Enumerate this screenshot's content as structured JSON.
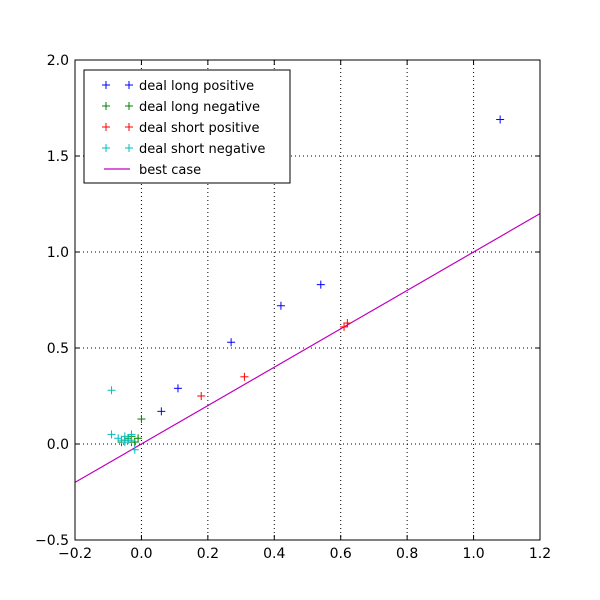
{
  "chart_data": {
    "type": "scatter",
    "title": "",
    "xlabel": "",
    "ylabel": "",
    "xlim": [
      -0.2,
      1.2
    ],
    "ylim": [
      -0.5,
      2.0
    ],
    "xticks": [
      -0.2,
      0.0,
      0.2,
      0.4,
      0.6,
      0.8,
      1.0,
      1.2
    ],
    "yticks": [
      -0.5,
      0.0,
      0.5,
      1.0,
      1.5,
      2.0
    ],
    "xtick_labels": [
      "−0.2",
      "0.0",
      "0.2",
      "0.4",
      "0.6",
      "0.8",
      "1.0",
      "1.2"
    ],
    "ytick_labels": [
      "−0.5",
      "0.0",
      "0.5",
      "1.0",
      "1.5",
      "2.0"
    ],
    "grid": true,
    "legend_position": "top-left",
    "series": [
      {
        "name": "deal long positive",
        "marker": "+",
        "color": "#0000ff",
        "points": [
          [
            0.06,
            0.17
          ],
          [
            0.11,
            0.29
          ],
          [
            0.27,
            0.53
          ],
          [
            0.42,
            0.72
          ],
          [
            0.54,
            0.83
          ],
          [
            1.08,
            1.69
          ]
        ]
      },
      {
        "name": "deal long negative",
        "marker": "+",
        "color": "#008000",
        "points": [
          [
            -0.05,
            0.02
          ],
          [
            -0.04,
            0.03
          ],
          [
            -0.03,
            0.04
          ],
          [
            -0.02,
            0.01
          ],
          [
            -0.01,
            0.03
          ],
          [
            0.0,
            0.13
          ],
          [
            -0.06,
            0.01
          ],
          [
            -0.03,
            0.01
          ]
        ]
      },
      {
        "name": "deal short positive",
        "marker": "+",
        "color": "#ff0000",
        "points": [
          [
            0.18,
            0.25
          ],
          [
            0.31,
            0.35
          ],
          [
            0.61,
            0.61
          ],
          [
            0.62,
            0.63
          ]
        ]
      },
      {
        "name": "deal short negative",
        "marker": "+",
        "color": "#00bfbf",
        "points": [
          [
            -0.09,
            0.28
          ],
          [
            -0.09,
            0.05
          ],
          [
            -0.07,
            0.03
          ],
          [
            -0.06,
            0.02
          ],
          [
            -0.05,
            0.04
          ],
          [
            -0.05,
            0.01
          ],
          [
            -0.04,
            0.02
          ],
          [
            -0.03,
            0.05
          ],
          [
            -0.03,
            0.02
          ],
          [
            -0.02,
            -0.03
          ]
        ]
      },
      {
        "name": "best case",
        "type": "line",
        "color": "#bf00bf",
        "points": [
          [
            -0.2,
            -0.2
          ],
          [
            1.2,
            1.2
          ]
        ]
      }
    ]
  }
}
